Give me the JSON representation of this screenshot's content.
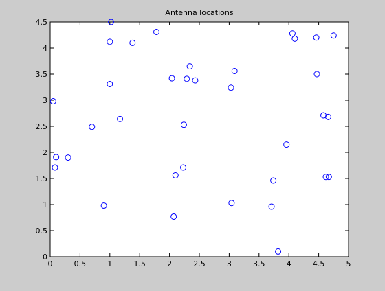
{
  "colors": {
    "figure_background": "#cccccc",
    "axes_background": "#ffffff",
    "marker": "#0000ff",
    "axis": "#000000"
  },
  "chart_data": {
    "type": "scatter",
    "title": "Antenna locations",
    "xlabel": "",
    "ylabel": "",
    "xlim": [
      0,
      5
    ],
    "ylim": [
      0,
      4.5
    ],
    "xticks": [
      "0",
      "0.5",
      "1",
      "1.5",
      "2",
      "2.5",
      "3",
      "3.5",
      "4",
      "4.5",
      "5"
    ],
    "yticks": [
      "0",
      "0.5",
      "1",
      "1.5",
      "2",
      "2.5",
      "3",
      "3.5",
      "4",
      "4.5"
    ],
    "grid": false,
    "legend": "none",
    "marker": "circle",
    "points": [
      {
        "x": 0.05,
        "y": 2.98
      },
      {
        "x": 0.1,
        "y": 1.91
      },
      {
        "x": 0.08,
        "y": 1.71
      },
      {
        "x": 0.3,
        "y": 1.9
      },
      {
        "x": 0.7,
        "y": 2.49
      },
      {
        "x": 0.9,
        "y": 0.98
      },
      {
        "x": 1.0,
        "y": 3.31
      },
      {
        "x": 1.0,
        "y": 4.12
      },
      {
        "x": 1.02,
        "y": 4.5
      },
      {
        "x": 1.17,
        "y": 2.64
      },
      {
        "x": 1.38,
        "y": 4.1
      },
      {
        "x": 1.78,
        "y": 4.31
      },
      {
        "x": 2.04,
        "y": 3.42
      },
      {
        "x": 2.07,
        "y": 0.77
      },
      {
        "x": 2.1,
        "y": 1.56
      },
      {
        "x": 2.23,
        "y": 1.71
      },
      {
        "x": 2.24,
        "y": 2.53
      },
      {
        "x": 2.29,
        "y": 3.41
      },
      {
        "x": 2.34,
        "y": 3.65
      },
      {
        "x": 2.43,
        "y": 3.38
      },
      {
        "x": 3.03,
        "y": 3.24
      },
      {
        "x": 3.04,
        "y": 1.03
      },
      {
        "x": 3.09,
        "y": 3.56
      },
      {
        "x": 3.71,
        "y": 0.96
      },
      {
        "x": 3.74,
        "y": 1.46
      },
      {
        "x": 3.82,
        "y": 0.1
      },
      {
        "x": 3.96,
        "y": 2.15
      },
      {
        "x": 4.06,
        "y": 4.28
      },
      {
        "x": 4.1,
        "y": 4.18
      },
      {
        "x": 4.46,
        "y": 4.2
      },
      {
        "x": 4.47,
        "y": 3.5
      },
      {
        "x": 4.58,
        "y": 2.71
      },
      {
        "x": 4.62,
        "y": 1.53
      },
      {
        "x": 4.67,
        "y": 1.53
      },
      {
        "x": 4.66,
        "y": 2.68
      },
      {
        "x": 4.75,
        "y": 4.24
      }
    ]
  }
}
